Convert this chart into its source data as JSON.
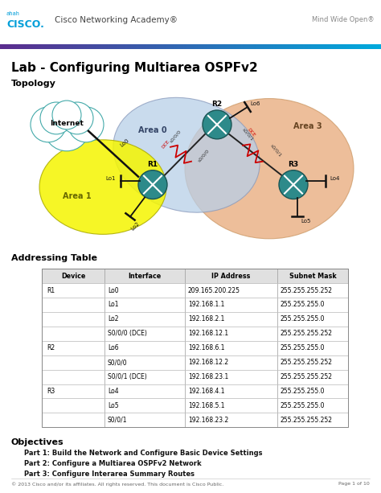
{
  "title": "Lab - Configuring Multiarea OSPFv2",
  "header_text": "Cisco Networking Academy®",
  "tagline": "Mind Wide Open®",
  "section_topology": "Topology",
  "section_addressing": "Addressing Table",
  "section_objectives": "Objectives",
  "objectives": [
    "Part 1: Build the Network and Configure Basic Device Settings",
    "Part 2: Configure a Multiarea OSPFv2 Network",
    "Part 3: Configure Interarea Summary Routes"
  ],
  "table_headers": [
    "Device",
    "Interface",
    "IP Address",
    "Subnet Mask"
  ],
  "table_rows": [
    [
      "R1",
      "Lo0",
      "209.165.200.225",
      "255.255.255.252"
    ],
    [
      "",
      "Lo1",
      "192.168.1.1",
      "255.255.255.0"
    ],
    [
      "",
      "Lo2",
      "192.168.2.1",
      "255.255.255.0"
    ],
    [
      "",
      "S0/0/0 (DCE)",
      "192.168.12.1",
      "255.255.255.252"
    ],
    [
      "R2",
      "Lo6",
      "192.168.6.1",
      "255.255.255.0"
    ],
    [
      "",
      "S0/0/0",
      "192.168.12.2",
      "255.255.255.252"
    ],
    [
      "",
      "S0/0/1 (DCE)",
      "192.168.23.1",
      "255.255.255.252"
    ],
    [
      "R3",
      "Lo4",
      "192.168.4.1",
      "255.255.255.0"
    ],
    [
      "",
      "Lo5",
      "192.168.5.1",
      "255.255.255.0"
    ],
    [
      "",
      "S0/0/1",
      "192.168.23.2",
      "255.255.255.252"
    ]
  ],
  "footer": "© 2013 Cisco and/or its affiliates. All rights reserved. This document is Cisco Public.",
  "page": "Page 1 of 10",
  "bg_color": "#ffffff",
  "cisco_blue": "#049fd9",
  "area0_color": "#b8cfe8",
  "area1_color": "#f5f500",
  "area3_color": "#e8a878",
  "router_teal": "#2d8a8a",
  "dce_link_color": "#cc0000",
  "bar_left_color": "#5b2d8e",
  "bar_right_color": "#00aadd"
}
